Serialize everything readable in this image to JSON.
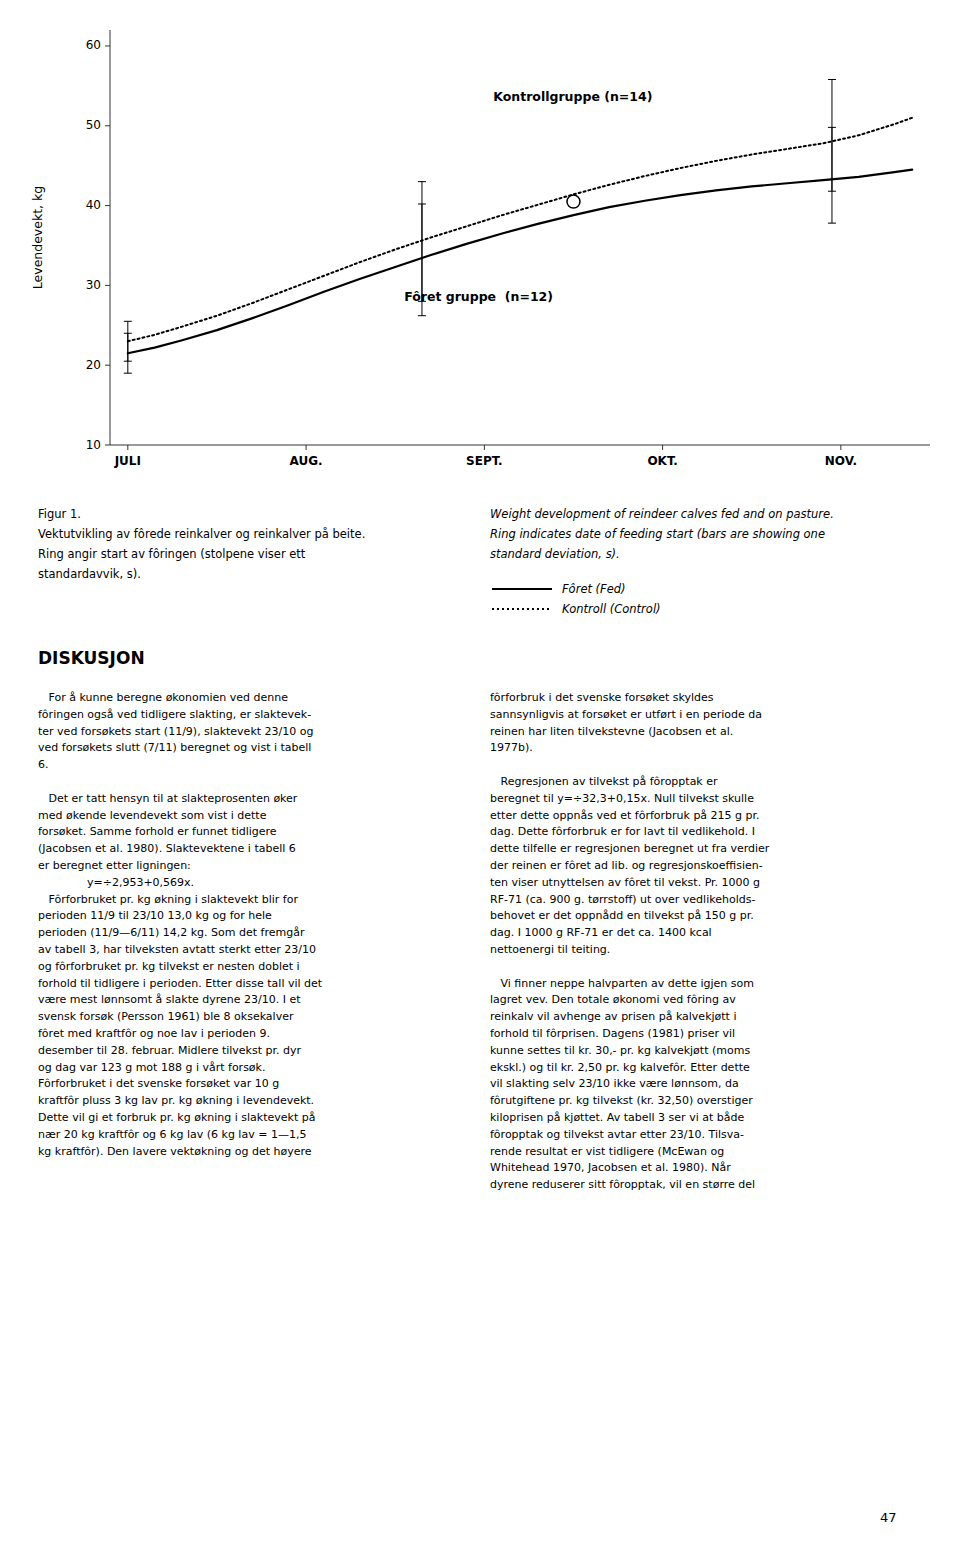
{
  "chart_data": {
    "type": "line",
    "ylabel": "Levendevekt, kg",
    "xlim": [
      -0.1,
      4.5
    ],
    "xticks": [
      {
        "value": 0,
        "label": "JULI"
      },
      {
        "value": 1,
        "label": "AUG."
      },
      {
        "value": 2,
        "label": "SEPT."
      },
      {
        "value": 3,
        "label": "OKT."
      },
      {
        "value": 4,
        "label": "NOV."
      }
    ],
    "ylim": [
      10,
      62
    ],
    "yticks": [
      10,
      20,
      30,
      40,
      50,
      60
    ],
    "grid": false,
    "series": [
      {
        "name": "Kontroll (Control)",
        "color": "#000000",
        "line_style": "dotted",
        "x": [
          0.0,
          0.15,
          0.3,
          0.5,
          0.7,
          0.9,
          1.1,
          1.3,
          1.5,
          1.7,
          1.9,
          2.1,
          2.3,
          2.5,
          2.7,
          2.9,
          3.1,
          3.3,
          3.5,
          3.7,
          3.9,
          4.1,
          4.3,
          4.4
        ],
        "values": [
          23.0,
          23.8,
          24.8,
          26.2,
          27.8,
          29.5,
          31.2,
          32.9,
          34.5,
          36.0,
          37.4,
          38.8,
          40.1,
          41.4,
          42.6,
          43.7,
          44.7,
          45.6,
          46.4,
          47.1,
          47.8,
          48.8,
          50.2,
          51.0
        ],
        "error_x": [
          0.0,
          1.65,
          3.95
        ],
        "error_y": [
          23.0,
          35.5,
          48.8
        ],
        "error": [
          2.5,
          7.5,
          7.0
        ]
      },
      {
        "name": "Fôret (Fed)",
        "color": "#000000",
        "line_style": "solid",
        "x": [
          0.0,
          0.15,
          0.3,
          0.5,
          0.7,
          0.9,
          1.1,
          1.3,
          1.5,
          1.7,
          1.9,
          2.1,
          2.3,
          2.5,
          2.7,
          2.9,
          3.1,
          3.3,
          3.5,
          3.7,
          3.9,
          4.1,
          4.3,
          4.4
        ],
        "values": [
          21.5,
          22.2,
          23.1,
          24.4,
          25.9,
          27.5,
          29.2,
          30.8,
          32.3,
          33.8,
          35.2,
          36.5,
          37.7,
          38.8,
          39.8,
          40.6,
          41.3,
          41.9,
          42.4,
          42.8,
          43.2,
          43.6,
          44.2,
          44.5
        ],
        "error_x": [
          0.0,
          1.65,
          3.95
        ],
        "error_y": [
          21.5,
          33.2,
          43.8
        ],
        "error": [
          2.5,
          7.0,
          6.0
        ],
        "ring_x": 2.5,
        "ring_y": 40.5
      }
    ],
    "annotations": [
      {
        "text": "Kontrollgruppe (n=14)",
        "x": 2.05,
        "y": 53.5
      },
      {
        "text": "Fôret gruppe  (n=12)",
        "x": 1.55,
        "y": 28.5
      }
    ]
  },
  "caption_no": "Figur 1.",
  "caption": [
    "Vektutvikling av fôrede reinkalver og reinkalver på beite.",
    "Ring angir start av fôringen (stolpene viser ett",
    "standardavvik, s)."
  ],
  "caption_en": [
    "Weight development of reindeer calves fed and on pasture.",
    "Ring indicates date of feeding start (bars are showing one",
    "standard deviation, s)."
  ],
  "heading": "DISKUSJON",
  "body_left": [
    "   For å kunne beregne økonomien ved denne",
    "fôringen også ved tidligere slakting, er slaktevek-",
    "ter ved forsøkets start (11/9), slaktevekt 23/10 og",
    "ved forsøkets slutt (7/11) beregnet og vist i tabell",
    "6.",
    "",
    "   Det er tatt hensyn til at slakteprosenten øker",
    "med økende levendevekt som vist i dette",
    "forsøket. Samme forhold er funnet tidligere",
    "(Jacobsen et al. 1980). Slaktevektene i tabell 6",
    "er beregnet etter ligningen:",
    "              y=÷2,953+0,569x.",
    "   Fôrforbruket pr. kg økning i slaktevekt blir for",
    "perioden 11/9 til 23/10 13,0 kg og for hele",
    "perioden (11/9—6/11) 14,2 kg. Som det fremgår",
    "av tabell 3, har tilveksten avtatt sterkt etter 23/10",
    "og fôrforbruket pr. kg tilvekst er nesten doblet i",
    "forhold til tidligere i perioden. Etter disse tall vil det",
    "være mest lønnsomt å slakte dyrene 23/10. I et",
    "svensk forsøk (Persson 1961) ble 8 oksekalver",
    "fôret med kraftfôr og noe lav i perioden 9.",
    "desember til 28. februar. Midlere tilvekst pr. dyr",
    "og dag var 123 g mot 188 g i vårt forsøk.",
    "Fôrforbruket i det svenske forsøket var 10 g",
    "kraftfôr pluss 3 kg lav pr. kg økning i levendevekt.",
    "Dette vil gi et forbruk pr. kg økning i slaktevekt på",
    "nær 20 kg kraftfôr og 6 kg lav (6 kg lav = 1—1,5",
    "kg kraftfôr). Den lavere vektøkning og det høyere"
  ],
  "body_right": [
    "fôrforbruk i det svenske forsøket skyldes",
    "sannsynligvis at forsøket er utført i en periode da",
    "reinen har liten tilvekstevne (Jacobsen et al.",
    "1977b).",
    "",
    "   Regresjonen av tilvekst på fôropptak er",
    "beregnet til y=÷32,3+0,15x. Null tilvekst skulle",
    "etter dette oppnås ved et fôrforbruk på 215 g pr.",
    "dag. Dette fôrforbruk er for lavt til vedlikehold. I",
    "dette tilfelle er regresjonen beregnet ut fra verdier",
    "der reinen er fôret ad lib. og regresjonskoeffisien-",
    "ten viser utnyttelsen av fôret til vekst. Pr. 1000 g",
    "RF-71 (ca. 900 g. tørrstoff) ut over vedlikeholds-",
    "behovet er det oppnådd en tilvekst på 150 g pr.",
    "dag. I 1000 g RF-71 er det ca. 1400 kcal",
    "nettoenergi til teiting.",
    "",
    "   Vi finner neppe halvparten av dette igjen som",
    "lagret vev. Den totale økonomi ved fôring av",
    "reinkalv vil avhenge av prisen på kalvekjøtt i",
    "forhold til fôrprisen. Dagens (1981) priser vil",
    "kunne settes til kr. 30,- pr. kg kalvekjøtt (moms",
    "ekskl.) og til kr. 2,50 pr. kg kalvefôr. Etter dette",
    "vil slakting selv 23/10 ikke være lønnsom, da",
    "fôrutgiftene pr. kg tilvekst (kr. 32,50) overstiger",
    "kiloprisen på kjøttet. Av tabell 3 ser vi at både",
    "fôropptak og tilvekst avtar etter 23/10. Tilsva-",
    "rende resultat er vist tidligere (McEwan og",
    "Whitehead 1970, Jacobsen et al. 1980). Når",
    "dyrene reduserer sitt fôropptak, vil en større del"
  ],
  "page_number": "47"
}
